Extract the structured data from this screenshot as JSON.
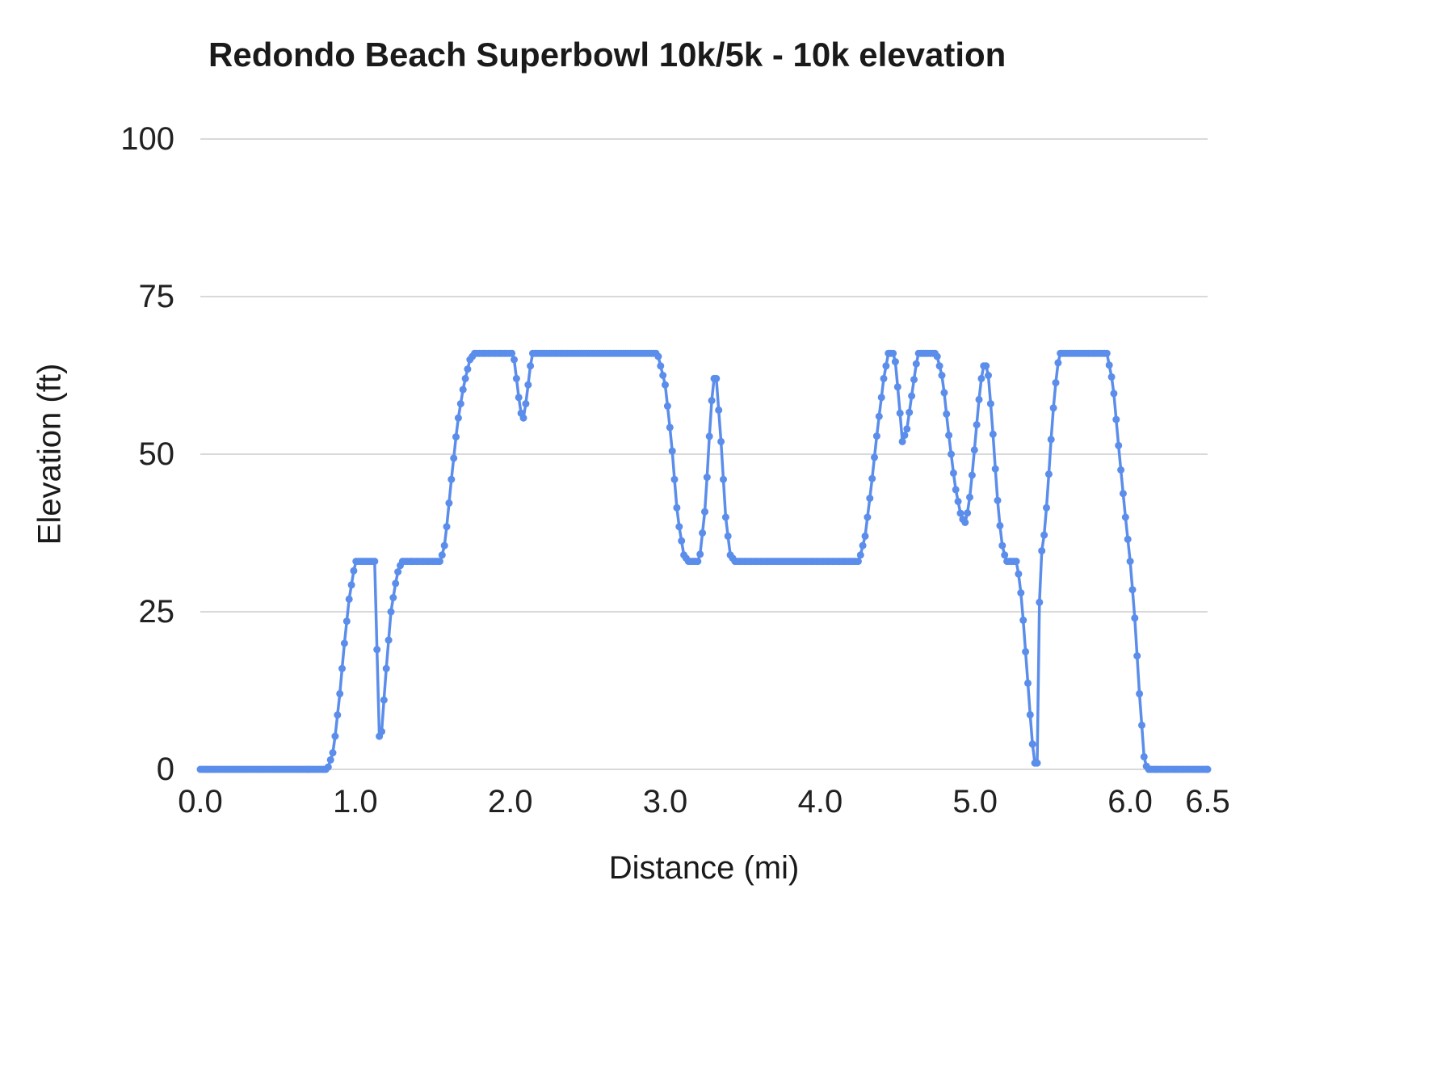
{
  "chart_data": {
    "type": "line",
    "title": "Redondo Beach Superbowl 10k/5k - 10k elevation",
    "xlabel": "Distance (mi)",
    "ylabel": "Elevation (ft)",
    "xlim": [
      0,
      6.5
    ],
    "ylim": [
      0,
      100
    ],
    "grid": true,
    "legend": "none",
    "line_color": "#5b8deb",
    "grid_color": "#d9d9d9",
    "tick_label_color": "#212121",
    "marker_radius": 4.5,
    "sample_step_mi": 0.015,
    "x_ticks": [
      {
        "value": 0,
        "label": "0.0"
      },
      {
        "value": 1,
        "label": "1.0"
      },
      {
        "value": 2,
        "label": "2.0"
      },
      {
        "value": 3,
        "label": "3.0"
      },
      {
        "value": 4,
        "label": "4.0"
      },
      {
        "value": 5,
        "label": "5.0"
      },
      {
        "value": 6,
        "label": "6.0"
      },
      {
        "value": 6.5,
        "label": "6.5"
      }
    ],
    "y_ticks": [
      {
        "value": 0,
        "label": "0"
      },
      {
        "value": 25,
        "label": "25"
      },
      {
        "value": 50,
        "label": "50"
      },
      {
        "value": 75,
        "label": "75"
      },
      {
        "value": 100,
        "label": "100"
      }
    ],
    "keypoints": [
      [
        0.0,
        0
      ],
      [
        0.82,
        0
      ],
      [
        0.86,
        3
      ],
      [
        0.9,
        12
      ],
      [
        0.93,
        20
      ],
      [
        0.96,
        27
      ],
      [
        1.0,
        33
      ],
      [
        1.13,
        33
      ],
      [
        1.15,
        5
      ],
      [
        1.17,
        6
      ],
      [
        1.2,
        16
      ],
      [
        1.23,
        25
      ],
      [
        1.27,
        31
      ],
      [
        1.3,
        33
      ],
      [
        1.55,
        33
      ],
      [
        1.58,
        36
      ],
      [
        1.62,
        46
      ],
      [
        1.66,
        55
      ],
      [
        1.7,
        61
      ],
      [
        1.74,
        65
      ],
      [
        1.77,
        66
      ],
      [
        2.02,
        66
      ],
      [
        2.06,
        58
      ],
      [
        2.08,
        55
      ],
      [
        2.1,
        58
      ],
      [
        2.14,
        66
      ],
      [
        2.95,
        66
      ],
      [
        3.0,
        61
      ],
      [
        3.04,
        52
      ],
      [
        3.08,
        40
      ],
      [
        3.12,
        34
      ],
      [
        3.15,
        33
      ],
      [
        3.22,
        33
      ],
      [
        3.26,
        42
      ],
      [
        3.29,
        55
      ],
      [
        3.31,
        62
      ],
      [
        3.33,
        62
      ],
      [
        3.36,
        52
      ],
      [
        3.39,
        40
      ],
      [
        3.42,
        34
      ],
      [
        3.45,
        33
      ],
      [
        4.25,
        33
      ],
      [
        4.29,
        37
      ],
      [
        4.33,
        45
      ],
      [
        4.37,
        54
      ],
      [
        4.41,
        62
      ],
      [
        4.44,
        66
      ],
      [
        4.48,
        66
      ],
      [
        4.51,
        58
      ],
      [
        4.53,
        52
      ],
      [
        4.56,
        54
      ],
      [
        4.6,
        61
      ],
      [
        4.63,
        66
      ],
      [
        4.75,
        66
      ],
      [
        4.79,
        62
      ],
      [
        4.83,
        53
      ],
      [
        4.87,
        45
      ],
      [
        4.91,
        40
      ],
      [
        4.94,
        39
      ],
      [
        4.97,
        44
      ],
      [
        5.0,
        52
      ],
      [
        5.03,
        60
      ],
      [
        5.05,
        64
      ],
      [
        5.08,
        64
      ],
      [
        5.11,
        55
      ],
      [
        5.14,
        44
      ],
      [
        5.17,
        36
      ],
      [
        5.2,
        33
      ],
      [
        5.27,
        33
      ],
      [
        5.3,
        27
      ],
      [
        5.33,
        17
      ],
      [
        5.36,
        7
      ],
      [
        5.38,
        1
      ],
      [
        5.4,
        1
      ],
      [
        5.41,
        20
      ],
      [
        5.42,
        33
      ],
      [
        5.45,
        38
      ],
      [
        5.47,
        45
      ],
      [
        5.5,
        56
      ],
      [
        5.53,
        64
      ],
      [
        5.55,
        66
      ],
      [
        5.85,
        66
      ],
      [
        5.89,
        61
      ],
      [
        5.93,
        50
      ],
      [
        5.97,
        40
      ],
      [
        6.0,
        33
      ],
      [
        6.03,
        24
      ],
      [
        6.06,
        12
      ],
      [
        6.09,
        2
      ],
      [
        6.11,
        0
      ],
      [
        6.5,
        0
      ]
    ]
  }
}
